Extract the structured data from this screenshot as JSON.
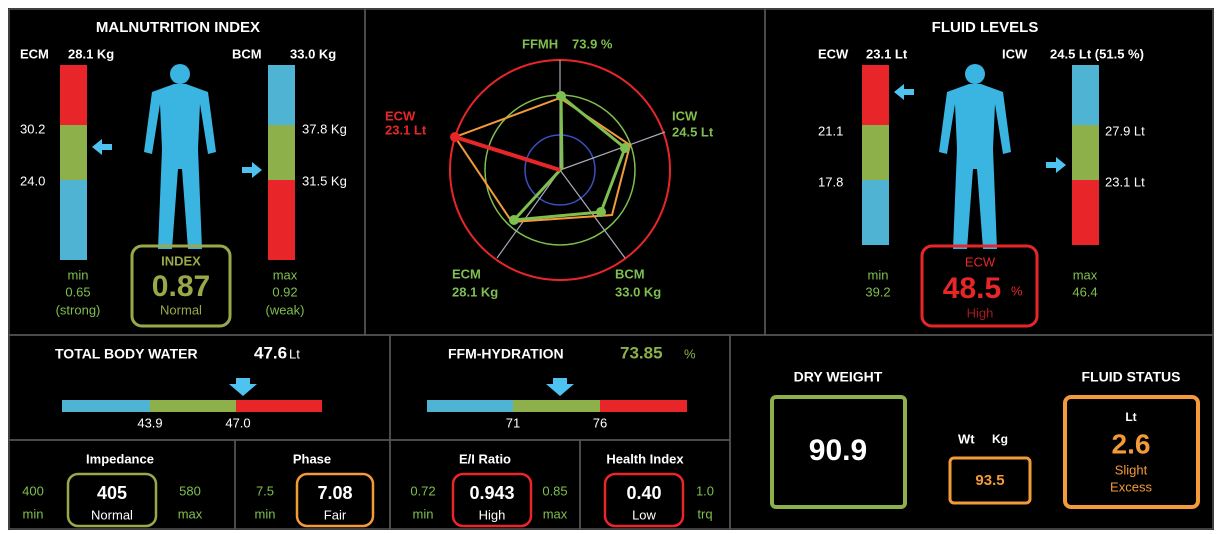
{
  "malnutrition": {
    "title": "MALNUTRITION INDEX",
    "ecm": {
      "label": "ECM",
      "value": "28.1 Kg"
    },
    "bcm": {
      "label": "BCM",
      "value": "33.0 Kg"
    },
    "ecm_scale": [
      "30.2",
      "24.0"
    ],
    "bcm_scale": [
      "37.8 Kg",
      "31.5 Kg"
    ],
    "min": {
      "label": "min",
      "value": "0.65",
      "note": "(strong)"
    },
    "index": {
      "label": "INDEX",
      "value": "0.87",
      "status": "Normal"
    },
    "max": {
      "label": "max",
      "value": "0.92",
      "note": "(weak)"
    }
  },
  "radar": {
    "ffmh": {
      "label": "FFMH",
      "value": "73.9 %"
    },
    "icw": {
      "label": "ICW",
      "value": "24.5 Lt"
    },
    "bcm": {
      "label": "BCM",
      "value": "33.0 Kg"
    },
    "ecm": {
      "label": "ECM",
      "value": "28.1 Kg"
    },
    "ecw": {
      "label": "ECW",
      "value": "23.1 Lt"
    }
  },
  "fluid_levels": {
    "title": "FLUID LEVELS",
    "ecw": {
      "label": "ECW",
      "value": "23.1 Lt"
    },
    "icw": {
      "label": "ICW",
      "value": "24.5 Lt (51.5 %)"
    },
    "ecw_scale": [
      "21.1",
      "17.8"
    ],
    "icw_scale": [
      "27.9 Lt",
      "23.1 Lt"
    ],
    "min": {
      "label": "min",
      "value": "39.2"
    },
    "ecw_box": {
      "label": "ECW",
      "value": "48.5",
      "unit": "%",
      "status": "High"
    },
    "max": {
      "label": "max",
      "value": "46.4"
    }
  },
  "total_body_water": {
    "title": "TOTAL BODY WATER",
    "value": "47.6",
    "unit": "Lt",
    "scale": [
      "43.9",
      "47.0"
    ]
  },
  "ffm_hydration": {
    "title": "FFM-HYDRATION",
    "value": "73.85",
    "unit": "%",
    "scale": [
      "71",
      "76"
    ]
  },
  "dry_weight": {
    "title": "DRY WEIGHT",
    "value": "90.9"
  },
  "weight": {
    "label": "Wt",
    "unit": "Kg",
    "value": "93.5"
  },
  "fluid_status": {
    "title": "FLUID STATUS",
    "unit": "Lt",
    "value": "2.6",
    "status": [
      "Slight",
      "Excess"
    ]
  },
  "metrics": [
    {
      "title": "Impedance",
      "min": "400",
      "min_label": "min",
      "value": "405",
      "status": "Normal",
      "max": "580",
      "max_label": "max"
    },
    {
      "title": "Phase",
      "min": "7.5",
      "min_label": "min",
      "value": "7.08",
      "status": "Fair"
    },
    {
      "title": "E/I Ratio",
      "min": "0.72",
      "min_label": "min",
      "value": "0.943",
      "status": "High",
      "max": "0.85",
      "max_label": "max"
    },
    {
      "title": "Health Index",
      "value": "0.40",
      "status": "Low",
      "max": "1.0",
      "max_label": "trq"
    }
  ]
}
